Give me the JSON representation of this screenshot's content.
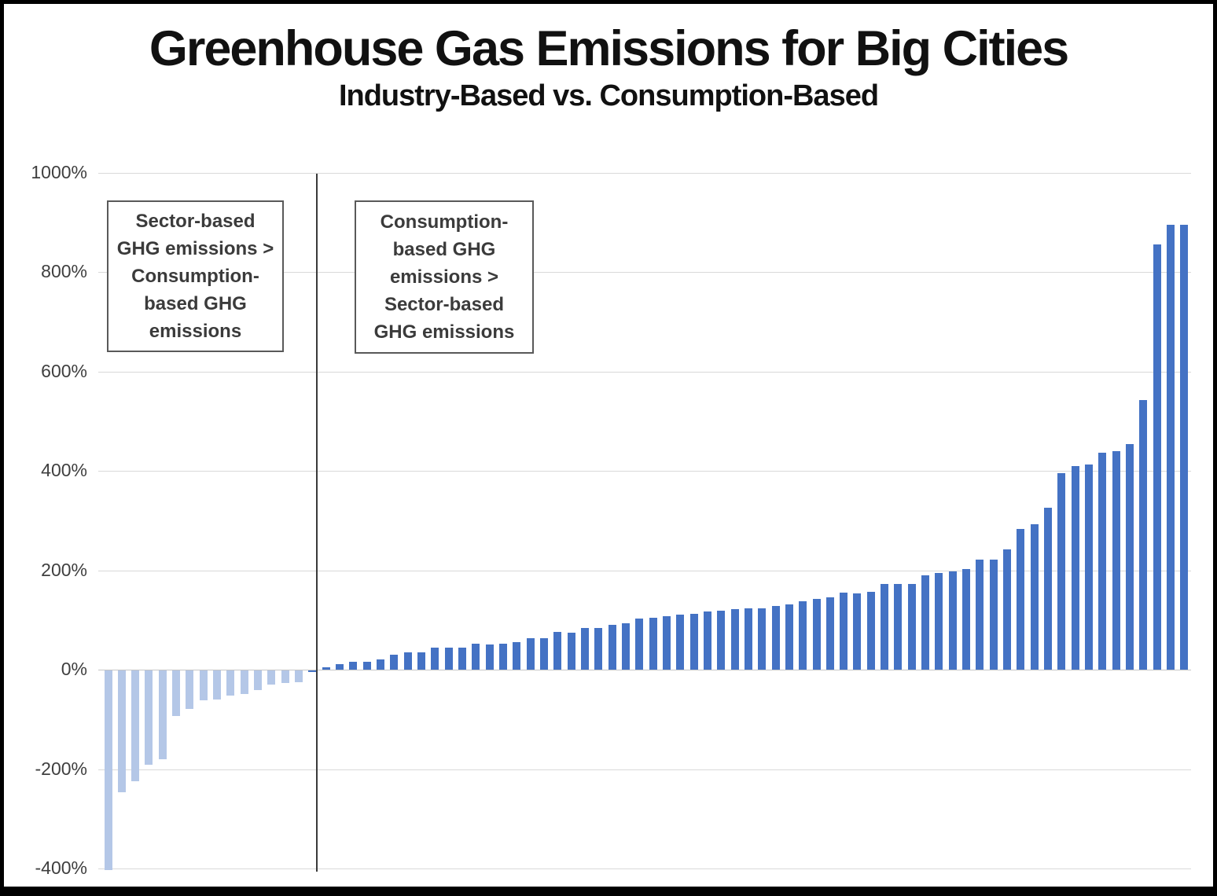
{
  "title": "Greenhouse Gas Emissions for Big Cities",
  "subtitle": "Industry-Based vs. Consumption-Based",
  "annotations": [
    {
      "text": "Sector-based\nGHG emissions >\nConsumption-\nbased GHG\nemissions"
    },
    {
      "text": "Consumption-\nbased GHG\nemissions >\nSector-based\nGHG emissions"
    }
  ],
  "colors": {
    "light_bar": "#b4c7e7",
    "dark_bar": "#4472c4",
    "gridline": "#d9d9d9",
    "axis_text": "#3f3f3f",
    "divider": "#3a3a3a",
    "frame": "#000000"
  },
  "chart_data": {
    "type": "bar",
    "title": "Greenhouse Gas Emissions for Big Cities",
    "subtitle": "Industry-Based vs. Consumption-Based",
    "xlabel": "",
    "ylabel": "",
    "units": "%",
    "ylim": [
      -450,
      1050
    ],
    "grid": true,
    "legend_position": "none",
    "x_axis_labels": "none (one unlabeled bar per city)",
    "y_ticks": [
      {
        "value": 1000,
        "label": "1000%"
      },
      {
        "value": 800,
        "label": "800%"
      },
      {
        "value": 600,
        "label": "600%"
      },
      {
        "value": 400,
        "label": "400%"
      },
      {
        "value": 200,
        "label": "200%"
      },
      {
        "value": 0,
        "label": "0%"
      },
      {
        "value": -200,
        "label": "-200%"
      },
      {
        "value": -400,
        "label": "-400%"
      }
    ],
    "series": [
      {
        "name": "Sector-based GHG emissions > Consumption-based GHG emissions",
        "color": "#b4c7e7",
        "values": [
          -402,
          -245,
          -223,
          -190,
          -178,
          -91,
          -77,
          -60,
          -58,
          -51,
          -48,
          -39,
          -28,
          -25,
          -23
        ]
      },
      {
        "name": "Consumption-based GHG emissions > Sector-based GHG emissions",
        "color": "#4472c4",
        "values": [
          -3,
          5,
          11,
          16,
          16,
          21,
          30,
          34,
          35,
          45,
          45,
          44,
          52,
          51,
          52,
          56,
          63,
          64,
          76,
          75,
          84,
          84,
          90,
          94,
          102,
          105,
          107,
          110,
          112,
          117,
          119,
          122,
          123,
          123,
          128,
          131,
          138,
          143,
          146,
          155,
          154,
          157,
          173,
          172,
          172,
          190,
          195,
          197,
          203,
          222,
          221,
          242,
          283,
          292,
          326,
          395,
          409,
          413,
          436,
          439,
          454,
          542,
          855,
          895,
          895
        ]
      }
    ]
  }
}
